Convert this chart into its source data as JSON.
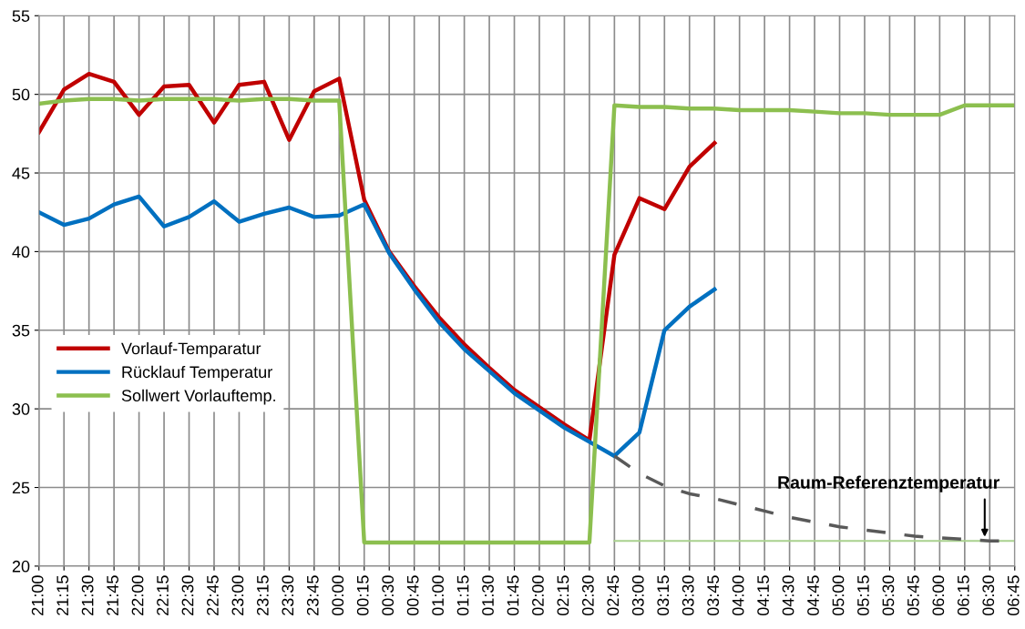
{
  "chart_data": {
    "type": "line",
    "categories": [
      "21:00",
      "21:15",
      "21:30",
      "21:45",
      "22:00",
      "22:15",
      "22:30",
      "22:45",
      "23:00",
      "23:15",
      "23:30",
      "23:45",
      "00:00",
      "00:15",
      "00:30",
      "00:45",
      "01:00",
      "01:15",
      "01:30",
      "01:45",
      "02:00",
      "02:15",
      "02:30",
      "02:45",
      "03:00",
      "03:15",
      "03:30",
      "03:45",
      "04:00",
      "04:15",
      "04:30",
      "04:45",
      "05:00",
      "05:15",
      "05:30",
      "05:45",
      "06:00",
      "06:15",
      "06:30",
      "06:45"
    ],
    "series": [
      {
        "name": "Vorlauf-Temparatur",
        "color": "#c00000",
        "values": [
          47.6,
          50.3,
          51.3,
          50.8,
          48.7,
          50.5,
          50.6,
          48.2,
          50.6,
          50.8,
          47.1,
          50.2,
          51.0,
          43.3,
          40.0,
          37.8,
          35.8,
          34.1,
          32.6,
          31.2,
          30.1,
          29.0,
          28.0,
          39.8,
          43.4,
          42.7,
          45.4,
          46.9,
          null,
          null,
          null,
          null,
          null,
          null,
          null,
          null,
          null,
          null,
          null,
          null
        ]
      },
      {
        "name": "Rücklauf Temperatur",
        "color": "#0070c0",
        "values": [
          42.5,
          41.7,
          42.1,
          43.0,
          43.5,
          41.6,
          42.2,
          43.2,
          41.9,
          42.4,
          42.8,
          42.2,
          42.3,
          43.0,
          39.9,
          37.6,
          35.5,
          33.8,
          32.4,
          31.0,
          29.9,
          28.8,
          27.9,
          27.0,
          28.5,
          35.0,
          36.5,
          37.6,
          null,
          null,
          null,
          null,
          null,
          null,
          null,
          null,
          null,
          null,
          null,
          null
        ]
      },
      {
        "name": "Sollwert Vorlauftemp.",
        "color": "#8cbf4f",
        "values": [
          49.4,
          49.6,
          49.7,
          49.7,
          49.6,
          49.7,
          49.7,
          49.7,
          49.6,
          49.7,
          49.7,
          49.6,
          49.6,
          21.5,
          21.5,
          21.5,
          21.5,
          21.5,
          21.5,
          21.5,
          21.5,
          21.5,
          21.5,
          49.3,
          49.2,
          49.2,
          49.1,
          49.1,
          49.0,
          49.0,
          49.0,
          48.9,
          48.8,
          48.8,
          48.7,
          48.7,
          48.7,
          49.3,
          49.3,
          49.3
        ]
      },
      {
        "color": "#a9d18e",
        "values": [
          null,
          null,
          null,
          null,
          null,
          null,
          null,
          null,
          null,
          null,
          null,
          null,
          null,
          null,
          null,
          null,
          null,
          null,
          null,
          null,
          null,
          null,
          null,
          21.6,
          21.6,
          21.6,
          21.6,
          21.6,
          21.6,
          21.6,
          21.6,
          21.6,
          21.6,
          21.6,
          21.6,
          21.6,
          21.6,
          21.6,
          21.6,
          21.6
        ]
      },
      {
        "color": "#595959",
        "line_style": "dashed",
        "values": [
          null,
          null,
          null,
          null,
          null,
          null,
          null,
          null,
          null,
          null,
          null,
          null,
          null,
          null,
          null,
          null,
          null,
          null,
          null,
          null,
          null,
          null,
          null,
          27.0,
          25.9,
          25.1,
          24.6,
          24.3,
          23.9,
          23.5,
          23.1,
          22.8,
          22.5,
          22.3,
          22.1,
          21.9,
          21.8,
          21.7,
          21.6,
          21.6
        ]
      }
    ],
    "ylim": [
      20,
      55
    ],
    "yticks": [
      20,
      25,
      30,
      35,
      40,
      45,
      50,
      55
    ],
    "grid": true,
    "legend": "left",
    "annotations": [
      {
        "text": "Raum-Referenztemperatur",
        "x": "06:30",
        "y": 21.7
      }
    ]
  }
}
